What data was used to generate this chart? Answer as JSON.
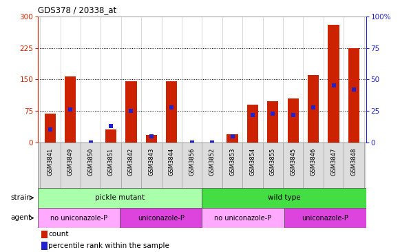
{
  "title": "GDS378 / 20338_at",
  "samples": [
    "GSM3841",
    "GSM3849",
    "GSM3850",
    "GSM3851",
    "GSM3842",
    "GSM3843",
    "GSM3844",
    "GSM3856",
    "GSM3852",
    "GSM3853",
    "GSM3854",
    "GSM3855",
    "GSM3845",
    "GSM3846",
    "GSM3847",
    "GSM3848"
  ],
  "counts": [
    68,
    157,
    0,
    30,
    145,
    18,
    145,
    0,
    0,
    20,
    90,
    98,
    105,
    160,
    280,
    225
  ],
  "percentiles_left_scale": [
    10,
    26,
    0,
    13,
    25,
    5,
    28,
    0,
    0,
    5,
    22,
    23,
    22,
    28,
    45,
    42
  ],
  "ylim_left": [
    0,
    300
  ],
  "ylim_right": [
    0,
    100
  ],
  "yticks_left": [
    0,
    75,
    150,
    225,
    300
  ],
  "yticks_right": [
    0,
    25,
    50,
    75,
    100
  ],
  "bar_color": "#cc2200",
  "dot_color": "#2222cc",
  "strain_groups": [
    {
      "label": "pickle mutant",
      "start": 0,
      "end": 8,
      "color": "#aaffaa"
    },
    {
      "label": "wild type",
      "start": 8,
      "end": 16,
      "color": "#44dd44"
    }
  ],
  "agent_groups": [
    {
      "label": "no uniconazole-P",
      "start": 0,
      "end": 4,
      "color": "#ffaaff"
    },
    {
      "label": "uniconazole-P",
      "start": 4,
      "end": 8,
      "color": "#dd44dd"
    },
    {
      "label": "no uniconazole-P",
      "start": 8,
      "end": 12,
      "color": "#ffaaff"
    },
    {
      "label": "uniconazole-P",
      "start": 12,
      "end": 16,
      "color": "#dd44dd"
    }
  ],
  "left_axis_color": "#cc2200",
  "right_axis_color": "#2222cc",
  "bar_width": 0.55,
  "dot_size": 22,
  "tick_bg_color": "#dddddd",
  "tick_border_color": "#888888"
}
